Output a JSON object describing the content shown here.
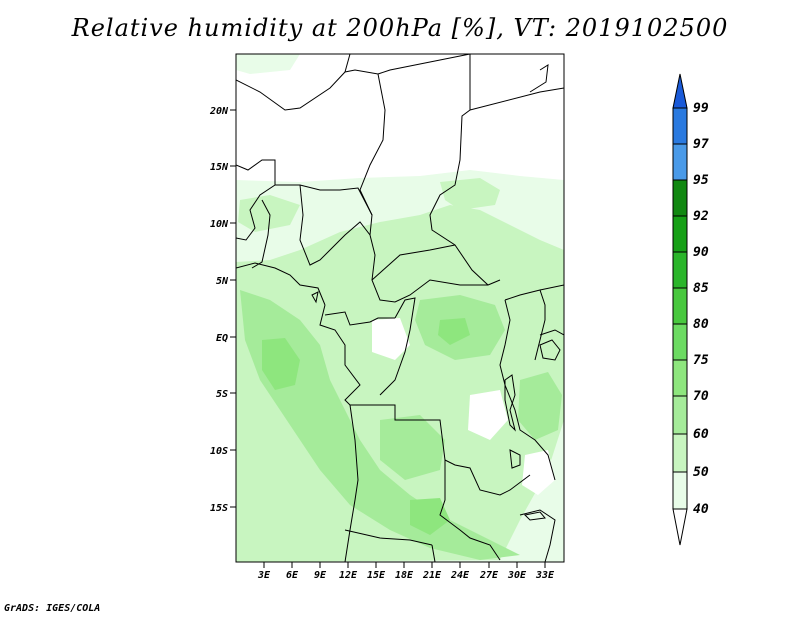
{
  "title": "Relative humidity at 200hPa [%], VT: 2019102500",
  "credit": "GrADS: IGES/COLA",
  "map": {
    "lat_ticks": [
      "20N",
      "15N",
      "10N",
      "5N",
      "EQ",
      "5S",
      "10S",
      "15S"
    ],
    "lon_ticks": [
      "3E",
      "6E",
      "9E",
      "12E",
      "15E",
      "18E",
      "21E",
      "24E",
      "27E",
      "30E",
      "33E"
    ],
    "shading_colors": {
      "c40": "#e8fce8",
      "c50": "#c8f5c0",
      "c60": "#a5eb9a",
      "c70": "#8ee67e"
    }
  },
  "colorbar": {
    "levels": [
      "40",
      "50",
      "60",
      "70",
      "75",
      "80",
      "85",
      "90",
      "92",
      "95",
      "97",
      "99"
    ],
    "colors": [
      "#ffffff",
      "#e8fce8",
      "#c8f5c0",
      "#a5eb9a",
      "#8ee67e",
      "#6cdb62",
      "#48c83e",
      "#2ab52a",
      "#16a016",
      "#118811",
      "#4a9ae8",
      "#2a7ae0",
      "#1a5ad8"
    ]
  }
}
